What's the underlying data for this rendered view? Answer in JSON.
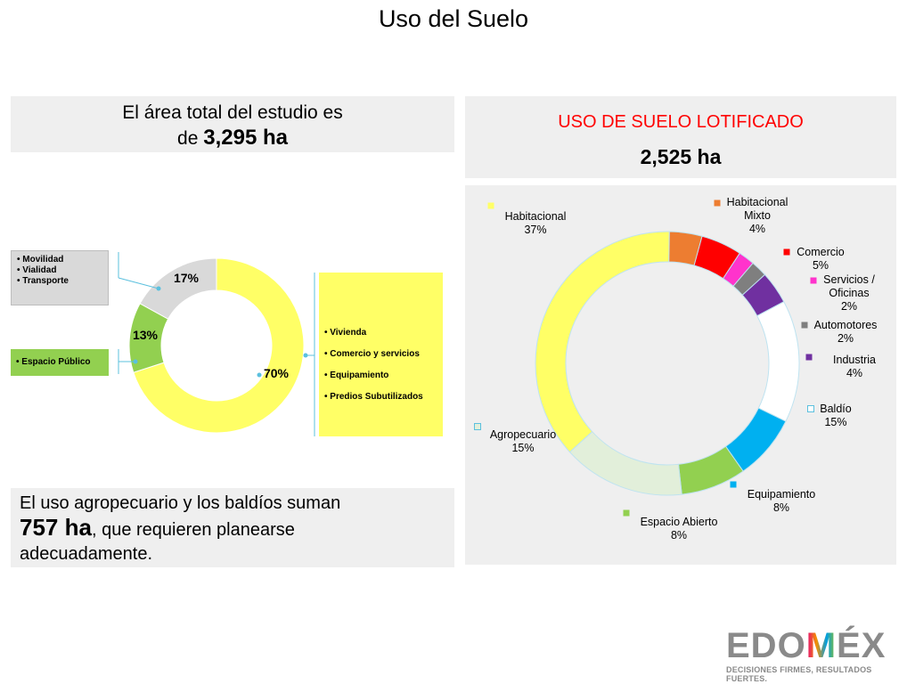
{
  "page": {
    "title": "Uso del Suelo"
  },
  "summary_box": {
    "line1": "El área total del estudio es",
    "prefix": "de",
    "value": "3,295 ha"
  },
  "lotificado_box": {
    "title": "USO DE SUELO LOTIFICADO",
    "title_color": "#ff0000",
    "value": "2,525 ha"
  },
  "bottom_note": {
    "line1": "El uso agropecuario y los baldíos suman",
    "value": "757 ha",
    "line2_rest": ", que requieren planearse",
    "line3": "adecuadamente."
  },
  "left_legend": {
    "movilidad_items": [
      "• Movilidad",
      "• Vialidad",
      "• Transporte"
    ],
    "espacio_items": [
      "• Espacio Público"
    ],
    "vivienda_items": [
      "• Vivienda",
      "• Comercio y servicios",
      "• Equipamiento",
      "• Predios Subutilizados"
    ]
  },
  "logo": {
    "text_main": "EDO",
    "text_mid": "M",
    "text_end": "ÉX",
    "tagline": "DECISIONES FIRMES, RESULTADOS FUERTES."
  },
  "chart_data": [
    {
      "type": "pie",
      "variant": "donut",
      "title": "",
      "categories": [
        "70%",
        "13%",
        "17%"
      ],
      "values": [
        70,
        13,
        17
      ],
      "value_labels": [
        "70%",
        "13%",
        "17%"
      ],
      "colors": [
        "#ffff66",
        "#92d050",
        "#d9d9d9"
      ],
      "legend": "side boxes"
    },
    {
      "type": "pie",
      "variant": "donut",
      "title": "USO DE SUELO LOTIFICADO",
      "categories": [
        "Habitacional",
        "Habitacional Mixto",
        "Comercio",
        "Servicios / Oficinas",
        "Automotores",
        "Industria",
        "Baldío",
        "Equipamiento",
        "Espacio Abierto",
        "Agropecuario"
      ],
      "label_lines": [
        [
          "Habitacional",
          "37%"
        ],
        [
          "Habitacional",
          "Mixto",
          "4%"
        ],
        [
          "Comercio",
          "5%"
        ],
        [
          "Servicios /",
          "Oficinas",
          "2%"
        ],
        [
          "Automotores",
          "2%"
        ],
        [
          "Industria",
          "4%"
        ],
        [
          "Baldío",
          "15%"
        ],
        [
          "Equipamiento",
          "8%"
        ],
        [
          "Espacio Abierto",
          "8%"
        ],
        [
          "Agropecuario",
          "15%"
        ]
      ],
      "values": [
        37,
        4,
        5,
        2,
        2,
        4,
        15,
        8,
        8,
        15
      ],
      "colors": [
        "#ffff66",
        "#ed7d31",
        "#ff0000",
        "#ff33cc",
        "#7f7f7f",
        "#7030a0",
        "#ffffff",
        "#00b0f0",
        "#92d050",
        "#e2efda"
      ],
      "legend": "outside labels"
    }
  ]
}
